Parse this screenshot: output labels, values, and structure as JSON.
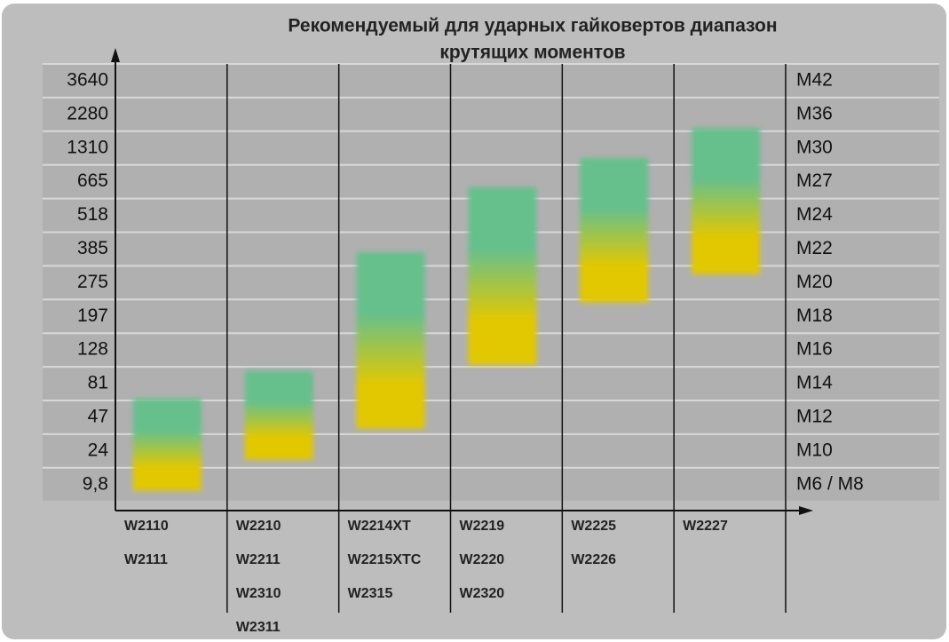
{
  "chart_data": {
    "type": "range_bar",
    "title_lines": [
      "Рекомендуемый для ударных гайковертов диапазон",
      "крутящих моментов"
    ],
    "rows": [
      {
        "left": "3640",
        "right": "M42"
      },
      {
        "left": "2280",
        "right": "M36"
      },
      {
        "left": "1310",
        "right": "M30"
      },
      {
        "left": "665",
        "right": "M27"
      },
      {
        "left": "518",
        "right": "M24"
      },
      {
        "left": "385",
        "right": "M22"
      },
      {
        "left": "275",
        "right": "M20"
      },
      {
        "left": "197",
        "right": "M18"
      },
      {
        "left": "128",
        "right": "M16"
      },
      {
        "left": "81",
        "right": "M14"
      },
      {
        "left": "47",
        "right": "M12"
      },
      {
        "left": "24",
        "right": "M10"
      },
      {
        "left": "9,8",
        "right": "M6 / M8"
      }
    ],
    "bars": [
      {
        "labels": [
          "W2110",
          "W2111"
        ],
        "low": 0.32,
        "high": 3.06
      },
      {
        "labels": [
          "W2210",
          "W2211",
          "W2310",
          "W2311"
        ],
        "low": 1.24,
        "high": 3.88
      },
      {
        "labels": [
          "W2214XT",
          "W2215XTC",
          "W2315"
        ],
        "low": 2.16,
        "high": 7.41
      },
      {
        "labels": [
          "W2219",
          "W2220",
          "W2320"
        ],
        "low": 4.06,
        "high": 9.34
      },
      {
        "labels": [
          "W2225",
          "W2226"
        ],
        "low": 5.91,
        "high": 10.21
      },
      {
        "labels": [
          "W2227"
        ],
        "low": 6.75,
        "high": 11.1
      }
    ],
    "colors": [
      "#66c08c",
      "#e2c800"
    ]
  }
}
